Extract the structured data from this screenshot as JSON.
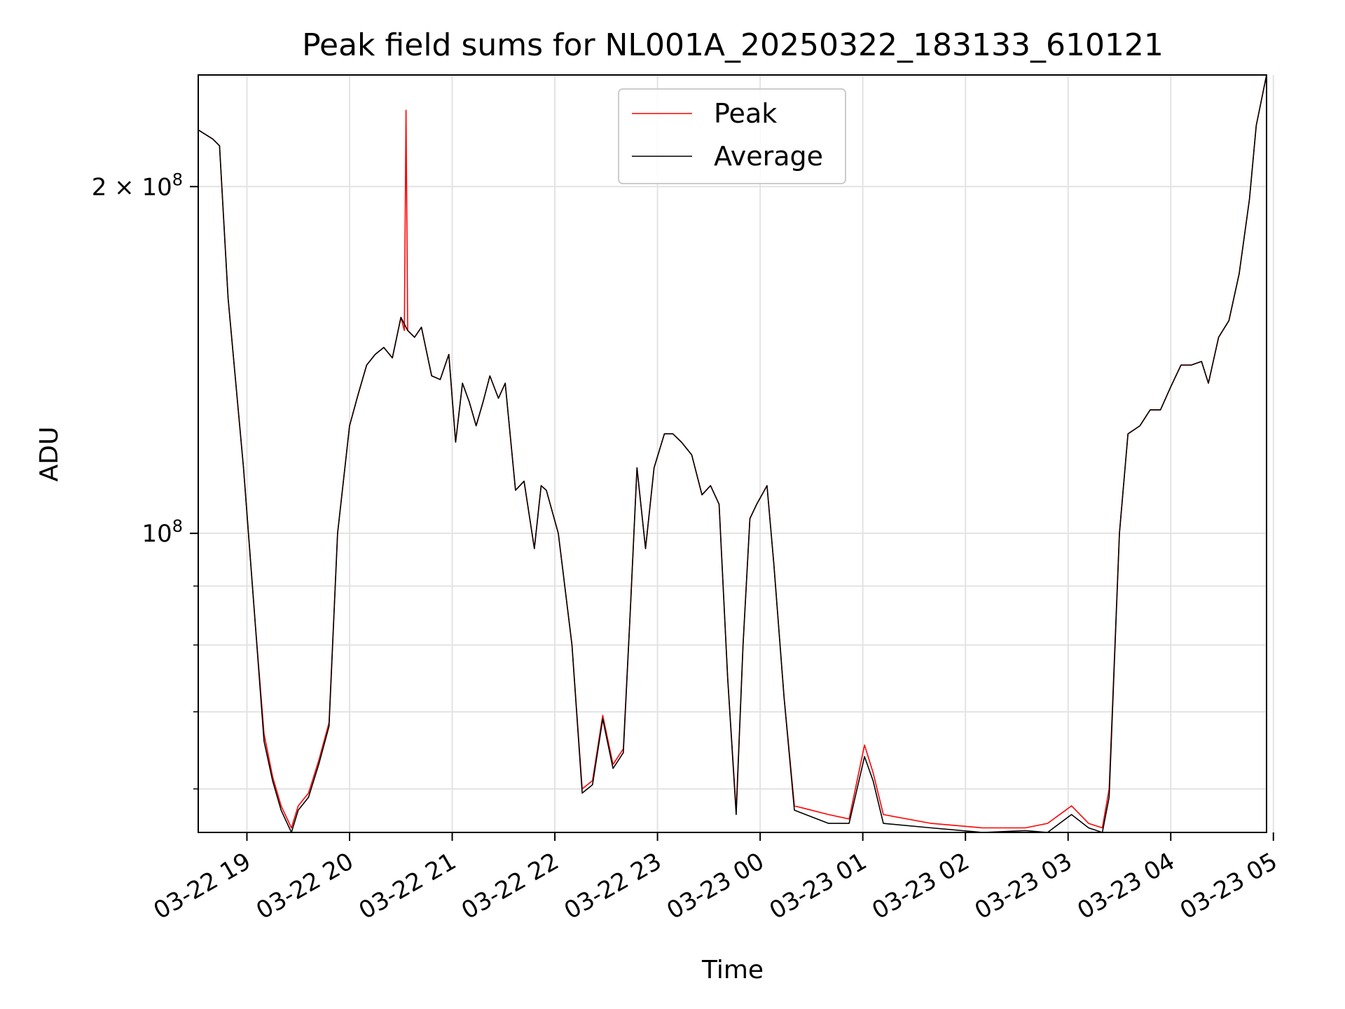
{
  "chart_data": {
    "type": "line",
    "title": "Peak field sums for NL001A_20250322_183133_610121",
    "xlabel": "Time",
    "ylabel": "ADU",
    "y_scale": "log",
    "ylim": [
      55000000,
      250000000
    ],
    "xlim": [
      "2025-03-22 18:31:33",
      "2025-03-23 04:56:00"
    ],
    "grid": true,
    "legend_location": "upper center",
    "x_ticks": [
      {
        "t": "2025-03-22 19:00",
        "label": "03-22 19"
      },
      {
        "t": "2025-03-22 20:00",
        "label": "03-22 20"
      },
      {
        "t": "2025-03-22 21:00",
        "label": "03-22 21"
      },
      {
        "t": "2025-03-22 22:00",
        "label": "03-22 22"
      },
      {
        "t": "2025-03-22 23:00",
        "label": "03-22 23"
      },
      {
        "t": "2025-03-23 00:00",
        "label": "03-23 00"
      },
      {
        "t": "2025-03-23 01:00",
        "label": "03-23 01"
      },
      {
        "t": "2025-03-23 02:00",
        "label": "03-23 02"
      },
      {
        "t": "2025-03-23 03:00",
        "label": "03-23 03"
      },
      {
        "t": "2025-03-23 04:00",
        "label": "03-23 04"
      },
      {
        "t": "2025-03-23 05:00",
        "label": "03-23 05"
      }
    ],
    "y_major_ticks": [
      {
        "v": 100000000,
        "base": "10",
        "exp": "8"
      },
      {
        "v": 200000000,
        "base": "2 × 10",
        "exp": "8"
      }
    ],
    "y_minor_ticks": [
      60000000,
      70000000,
      80000000,
      90000000
    ],
    "series": [
      {
        "name": "Peak",
        "color": "#ff0000",
        "points": [
          [
            "2025-03-22 18:31:33",
            224000000.0
          ],
          [
            "2025-03-22 18:40:00",
            220000000.0
          ],
          [
            "2025-03-22 18:44:00",
            217000000.0
          ],
          [
            "2025-03-22 18:49:00",
            160000000.0
          ],
          [
            "2025-03-22 18:58:00",
            114000000.0
          ],
          [
            "2025-03-22 19:05:00",
            83000000.0
          ],
          [
            "2025-03-22 19:10:00",
            67000000.0
          ],
          [
            "2025-03-22 19:15:00",
            61500000.0
          ],
          [
            "2025-03-22 19:20:00",
            58000000.0
          ],
          [
            "2025-03-22 19:26:00",
            55500000.0
          ],
          [
            "2025-03-22 19:30:00",
            58000000.0
          ],
          [
            "2025-03-22 19:36:00",
            59500000.0
          ],
          [
            "2025-03-22 19:42:00",
            63500000.0
          ],
          [
            "2025-03-22 19:48:00",
            68500000.0
          ],
          [
            "2025-03-22 19:53:00",
            100000000.0
          ],
          [
            "2025-03-22 20:00:00",
            124000000.0
          ],
          [
            "2025-03-22 20:05:00",
            132000000.0
          ],
          [
            "2025-03-22 20:10:00",
            140000000.0
          ],
          [
            "2025-03-22 20:15:00",
            143000000.0
          ],
          [
            "2025-03-22 20:20:00",
            145000000.0
          ],
          [
            "2025-03-22 20:25:00",
            142000000.0
          ],
          [
            "2025-03-22 20:30:00",
            154000000.0
          ],
          [
            "2025-03-22 20:32:00",
            150000000.0
          ],
          [
            "2025-03-22 20:33:00",
            233000000.0
          ],
          [
            "2025-03-22 20:34:00",
            150000000.0
          ],
          [
            "2025-03-22 20:38:00",
            148000000.0
          ],
          [
            "2025-03-22 20:42:00",
            151000000.0
          ],
          [
            "2025-03-22 20:48:00",
            137000000.0
          ],
          [
            "2025-03-22 20:53:00",
            136000000.0
          ],
          [
            "2025-03-22 20:58:00",
            143000000.0
          ],
          [
            "2025-03-22 21:02:00",
            120000000.0
          ],
          [
            "2025-03-22 21:06:00",
            135000000.0
          ],
          [
            "2025-03-22 21:10:00",
            130000000.0
          ],
          [
            "2025-03-22 21:14:00",
            124000000.0
          ],
          [
            "2025-03-22 21:18:00",
            130000000.0
          ],
          [
            "2025-03-22 21:22:00",
            137000000.0
          ],
          [
            "2025-03-22 21:27:00",
            131000000.0
          ],
          [
            "2025-03-22 21:31:00",
            135000000.0
          ],
          [
            "2025-03-22 21:37:00",
            109000000.0
          ],
          [
            "2025-03-22 21:42:00",
            111000000.0
          ],
          [
            "2025-03-22 21:48:00",
            97000000.0
          ],
          [
            "2025-03-22 21:52:00",
            110000000.0
          ],
          [
            "2025-03-22 21:55:00",
            109000000.0
          ],
          [
            "2025-03-22 22:02:00",
            100000000.0
          ],
          [
            "2025-03-22 22:10:00",
            80000000.0
          ],
          [
            "2025-03-22 22:16:00",
            60000000.0
          ],
          [
            "2025-03-22 22:22:00",
            61000000.0
          ],
          [
            "2025-03-22 22:28:00",
            69500000.0
          ],
          [
            "2025-03-22 22:34:00",
            63000000.0
          ],
          [
            "2025-03-22 22:40:00",
            65000000.0
          ],
          [
            "2025-03-22 22:44:00",
            85000000.0
          ],
          [
            "2025-03-22 22:48:00",
            114000000.0
          ],
          [
            "2025-03-22 22:53:00",
            97000000.0
          ],
          [
            "2025-03-22 22:58:00",
            114000000.0
          ],
          [
            "2025-03-22 23:04:00",
            122000000.0
          ],
          [
            "2025-03-22 23:09:00",
            122000000.0
          ],
          [
            "2025-03-22 23:14:00",
            120000000.0
          ],
          [
            "2025-03-22 23:20:00",
            117000000.0
          ],
          [
            "2025-03-22 23:26:00",
            108000000.0
          ],
          [
            "2025-03-22 23:31:00",
            110000000.0
          ],
          [
            "2025-03-22 23:36:00",
            106000000.0
          ],
          [
            "2025-03-22 23:41:00",
            75000000.0
          ],
          [
            "2025-03-22 23:46:00",
            57500000.0
          ],
          [
            "2025-03-22 23:50:00",
            80000000.0
          ],
          [
            "2025-03-22 23:54:00",
            103000000.0
          ],
          [
            "2025-03-22 23:58:00",
            106000000.0
          ],
          [
            "2025-03-23 00:04:00",
            110000000.0
          ],
          [
            "2025-03-23 00:08:00",
            94000000.0
          ],
          [
            "2025-03-23 00:14:00",
            72000000.0
          ],
          [
            "2025-03-23 00:20:00",
            58000000.0
          ],
          [
            "2025-03-23 00:40:00",
            57000000.0
          ],
          [
            "2025-03-23 00:52:00",
            56500000.0
          ],
          [
            "2025-03-23 01:01:00",
            65500000.0
          ],
          [
            "2025-03-23 01:06:00",
            62000000.0
          ],
          [
            "2025-03-23 01:12:00",
            57000000.0
          ],
          [
            "2025-03-23 01:40:00",
            56000000.0
          ],
          [
            "2025-03-23 02:10:00",
            55500000.0
          ],
          [
            "2025-03-23 02:35:00",
            55500000.0
          ],
          [
            "2025-03-23 02:48:00",
            56000000.0
          ],
          [
            "2025-03-23 03:02:00",
            58000000.0
          ],
          [
            "2025-03-23 03:12:00",
            56000000.0
          ],
          [
            "2025-03-23 03:20:00",
            55500000.0
          ],
          [
            "2025-03-23 03:24:00",
            60000000.0
          ],
          [
            "2025-03-23 03:30:00",
            100000000.0
          ],
          [
            "2025-03-23 03:35:00",
            122000000.0
          ],
          [
            "2025-03-23 03:42:00",
            124000000.0
          ],
          [
            "2025-03-23 03:48:00",
            128000000.0
          ],
          [
            "2025-03-23 03:54:00",
            128000000.0
          ],
          [
            "2025-03-23 04:00:00",
            134000000.0
          ],
          [
            "2025-03-23 04:06:00",
            140000000.0
          ],
          [
            "2025-03-23 04:12:00",
            140000000.0
          ],
          [
            "2025-03-23 04:18:00",
            141000000.0
          ],
          [
            "2025-03-23 04:22:00",
            135000000.0
          ],
          [
            "2025-03-23 04:28:00",
            148000000.0
          ],
          [
            "2025-03-23 04:34:00",
            153000000.0
          ],
          [
            "2025-03-23 04:40:00",
            168000000.0
          ],
          [
            "2025-03-23 04:46:00",
            195000000.0
          ],
          [
            "2025-03-23 04:50:00",
            226000000.0
          ],
          [
            "2025-03-23 04:56:00",
            250000000.0
          ]
        ]
      },
      {
        "name": "Average",
        "color": "#000000",
        "points": [
          [
            "2025-03-22 18:31:33",
            224000000.0
          ],
          [
            "2025-03-22 18:40:00",
            220000000.0
          ],
          [
            "2025-03-22 18:44:00",
            217000000.0
          ],
          [
            "2025-03-22 18:49:00",
            160000000.0
          ],
          [
            "2025-03-22 18:58:00",
            114000000.0
          ],
          [
            "2025-03-22 19:05:00",
            83000000.0
          ],
          [
            "2025-03-22 19:10:00",
            66000000.0
          ],
          [
            "2025-03-22 19:15:00",
            61000000.0
          ],
          [
            "2025-03-22 19:20:00",
            57500000.0
          ],
          [
            "2025-03-22 19:26:00",
            55000000.0
          ],
          [
            "2025-03-22 19:30:00",
            57500000.0
          ],
          [
            "2025-03-22 19:36:00",
            59000000.0
          ],
          [
            "2025-03-22 19:42:00",
            63000000.0
          ],
          [
            "2025-03-22 19:48:00",
            68000000.0
          ],
          [
            "2025-03-22 19:53:00",
            100000000.0
          ],
          [
            "2025-03-22 20:00:00",
            124000000.0
          ],
          [
            "2025-03-22 20:05:00",
            132000000.0
          ],
          [
            "2025-03-22 20:10:00",
            140000000.0
          ],
          [
            "2025-03-22 20:15:00",
            143000000.0
          ],
          [
            "2025-03-22 20:20:00",
            145000000.0
          ],
          [
            "2025-03-22 20:25:00",
            142000000.0
          ],
          [
            "2025-03-22 20:30:00",
            154000000.0
          ],
          [
            "2025-03-22 20:34:00",
            150000000.0
          ],
          [
            "2025-03-22 20:38:00",
            148000000.0
          ],
          [
            "2025-03-22 20:42:00",
            151000000.0
          ],
          [
            "2025-03-22 20:48:00",
            137000000.0
          ],
          [
            "2025-03-22 20:53:00",
            136000000.0
          ],
          [
            "2025-03-22 20:58:00",
            143000000.0
          ],
          [
            "2025-03-22 21:02:00",
            120000000.0
          ],
          [
            "2025-03-22 21:06:00",
            135000000.0
          ],
          [
            "2025-03-22 21:10:00",
            130000000.0
          ],
          [
            "2025-03-22 21:14:00",
            124000000.0
          ],
          [
            "2025-03-22 21:18:00",
            130000000.0
          ],
          [
            "2025-03-22 21:22:00",
            137000000.0
          ],
          [
            "2025-03-22 21:27:00",
            131000000.0
          ],
          [
            "2025-03-22 21:31:00",
            135000000.0
          ],
          [
            "2025-03-22 21:37:00",
            109000000.0
          ],
          [
            "2025-03-22 21:42:00",
            111000000.0
          ],
          [
            "2025-03-22 21:48:00",
            97000000.0
          ],
          [
            "2025-03-22 21:52:00",
            110000000.0
          ],
          [
            "2025-03-22 21:55:00",
            109000000.0
          ],
          [
            "2025-03-22 22:02:00",
            100000000.0
          ],
          [
            "2025-03-22 22:10:00",
            80000000.0
          ],
          [
            "2025-03-22 22:16:00",
            59500000.0
          ],
          [
            "2025-03-22 22:22:00",
            60500000.0
          ],
          [
            "2025-03-22 22:28:00",
            69000000.0
          ],
          [
            "2025-03-22 22:34:00",
            62500000.0
          ],
          [
            "2025-03-22 22:40:00",
            64500000.0
          ],
          [
            "2025-03-22 22:44:00",
            85000000.0
          ],
          [
            "2025-03-22 22:48:00",
            114000000.0
          ],
          [
            "2025-03-22 22:53:00",
            97000000.0
          ],
          [
            "2025-03-22 22:58:00",
            114000000.0
          ],
          [
            "2025-03-22 23:04:00",
            122000000.0
          ],
          [
            "2025-03-22 23:09:00",
            122000000.0
          ],
          [
            "2025-03-22 23:14:00",
            120000000.0
          ],
          [
            "2025-03-22 23:20:00",
            117000000.0
          ],
          [
            "2025-03-22 23:26:00",
            108000000.0
          ],
          [
            "2025-03-22 23:31:00",
            110000000.0
          ],
          [
            "2025-03-22 23:36:00",
            106000000.0
          ],
          [
            "2025-03-22 23:41:00",
            75000000.0
          ],
          [
            "2025-03-22 23:46:00",
            57000000.0
          ],
          [
            "2025-03-22 23:50:00",
            80000000.0
          ],
          [
            "2025-03-22 23:54:00",
            103000000.0
          ],
          [
            "2025-03-22 23:58:00",
            106000000.0
          ],
          [
            "2025-03-23 00:04:00",
            110000000.0
          ],
          [
            "2025-03-23 00:08:00",
            94000000.0
          ],
          [
            "2025-03-23 00:14:00",
            72000000.0
          ],
          [
            "2025-03-23 00:20:00",
            57500000.0
          ],
          [
            "2025-03-23 00:40:00",
            56000000.0
          ],
          [
            "2025-03-23 00:52:00",
            56000000.0
          ],
          [
            "2025-03-23 01:01:00",
            64000000.0
          ],
          [
            "2025-03-23 01:06:00",
            61000000.0
          ],
          [
            "2025-03-23 01:12:00",
            56000000.0
          ],
          [
            "2025-03-23 01:40:00",
            55500000.0
          ],
          [
            "2025-03-23 02:10:00",
            55000000.0
          ],
          [
            "2025-03-23 02:35:00",
            55200000.0
          ],
          [
            "2025-03-23 02:48:00",
            55000000.0
          ],
          [
            "2025-03-23 03:02:00",
            57000000.0
          ],
          [
            "2025-03-23 03:12:00",
            55500000.0
          ],
          [
            "2025-03-23 03:20:00",
            55000000.0
          ],
          [
            "2025-03-23 03:24:00",
            59000000.0
          ],
          [
            "2025-03-23 03:30:00",
            100000000.0
          ],
          [
            "2025-03-23 03:35:00",
            122000000.0
          ],
          [
            "2025-03-23 03:42:00",
            124000000.0
          ],
          [
            "2025-03-23 03:48:00",
            128000000.0
          ],
          [
            "2025-03-23 03:54:00",
            128000000.0
          ],
          [
            "2025-03-23 04:00:00",
            134000000.0
          ],
          [
            "2025-03-23 04:06:00",
            140000000.0
          ],
          [
            "2025-03-23 04:12:00",
            140000000.0
          ],
          [
            "2025-03-23 04:18:00",
            141000000.0
          ],
          [
            "2025-03-23 04:22:00",
            135000000.0
          ],
          [
            "2025-03-23 04:28:00",
            148000000.0
          ],
          [
            "2025-03-23 04:34:00",
            153000000.0
          ],
          [
            "2025-03-23 04:40:00",
            168000000.0
          ],
          [
            "2025-03-23 04:46:00",
            195000000.0
          ],
          [
            "2025-03-23 04:50:00",
            226000000.0
          ],
          [
            "2025-03-23 04:56:00",
            250000000.0
          ]
        ]
      }
    ]
  }
}
